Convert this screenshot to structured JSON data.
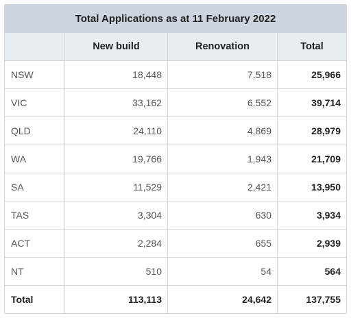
{
  "table": {
    "title": "Total Applications as at 11 February 2022",
    "headers": [
      "",
      "New build",
      "Renovation",
      "Total"
    ],
    "rows": [
      {
        "state": "NSW",
        "new_build": "18,448",
        "renovation": "7,518",
        "total": "25,966"
      },
      {
        "state": "VIC",
        "new_build": "33,162",
        "renovation": "6,552",
        "total": "39,714"
      },
      {
        "state": "QLD",
        "new_build": "24,110",
        "renovation": "4,869",
        "total": "28,979"
      },
      {
        "state": "WA",
        "new_build": "19,766",
        "renovation": "1,943",
        "total": "21,709"
      },
      {
        "state": "SA",
        "new_build": "11,529",
        "renovation": "2,421",
        "total": "13,950"
      },
      {
        "state": "TAS",
        "new_build": "3,304",
        "renovation": "630",
        "total": "3,934"
      },
      {
        "state": "ACT",
        "new_build": "2,284",
        "renovation": "655",
        "total": "2,939"
      },
      {
        "state": "NT",
        "new_build": "510",
        "renovation": "54",
        "total": "564"
      }
    ],
    "total_row": {
      "state": "Total",
      "new_build": "113,113",
      "renovation": "24,642",
      "total": "137,755"
    }
  }
}
